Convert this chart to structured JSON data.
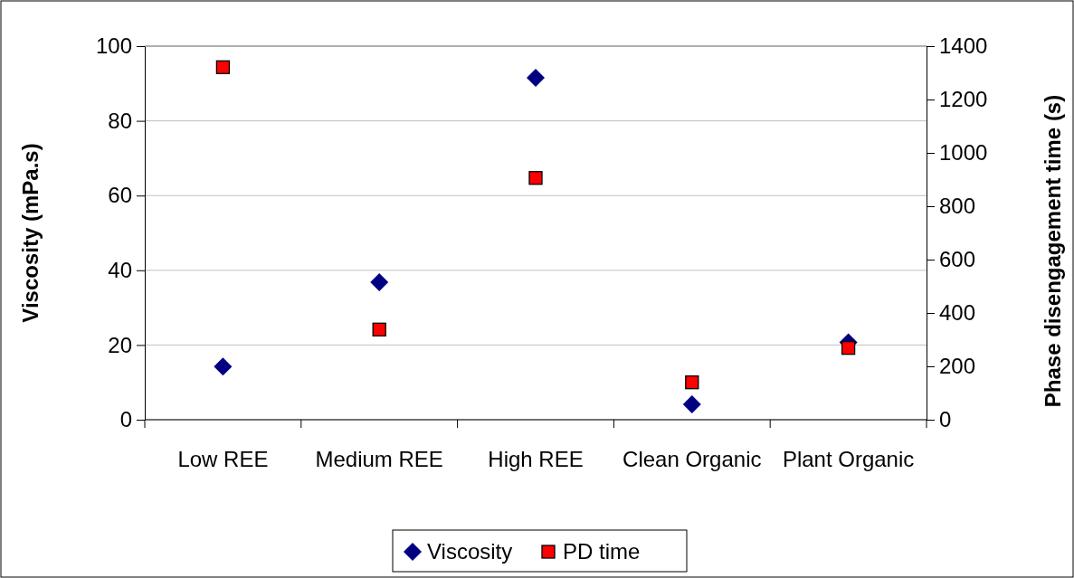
{
  "chart_data": {
    "type": "scatter",
    "categories": [
      "Low REE",
      "Medium REE",
      "High REE",
      "Clean Organic",
      "Plant Organic"
    ],
    "ylabel": "Viscosity (mPa.s)",
    "y2label": "Phase disengagement time (s)",
    "ylim": [
      0,
      100
    ],
    "yticks": [
      0,
      20,
      40,
      60,
      80,
      100
    ],
    "y2lim": [
      0,
      1400
    ],
    "y2ticks": [
      0,
      200,
      400,
      600,
      800,
      1000,
      1200,
      1400
    ],
    "grid": "y",
    "legend": "bottom",
    "series": [
      {
        "name": "Viscosity",
        "color": "#000080",
        "marker": "diamond",
        "values": [
          14.2,
          36.8,
          91.5,
          4.1,
          20.7
        ]
      },
      {
        "name": "PD time",
        "color": "#ff0000",
        "marker": "square",
        "axis": "y2",
        "values": [
          1321,
          338,
          906,
          140,
          269
        ]
      }
    ]
  }
}
